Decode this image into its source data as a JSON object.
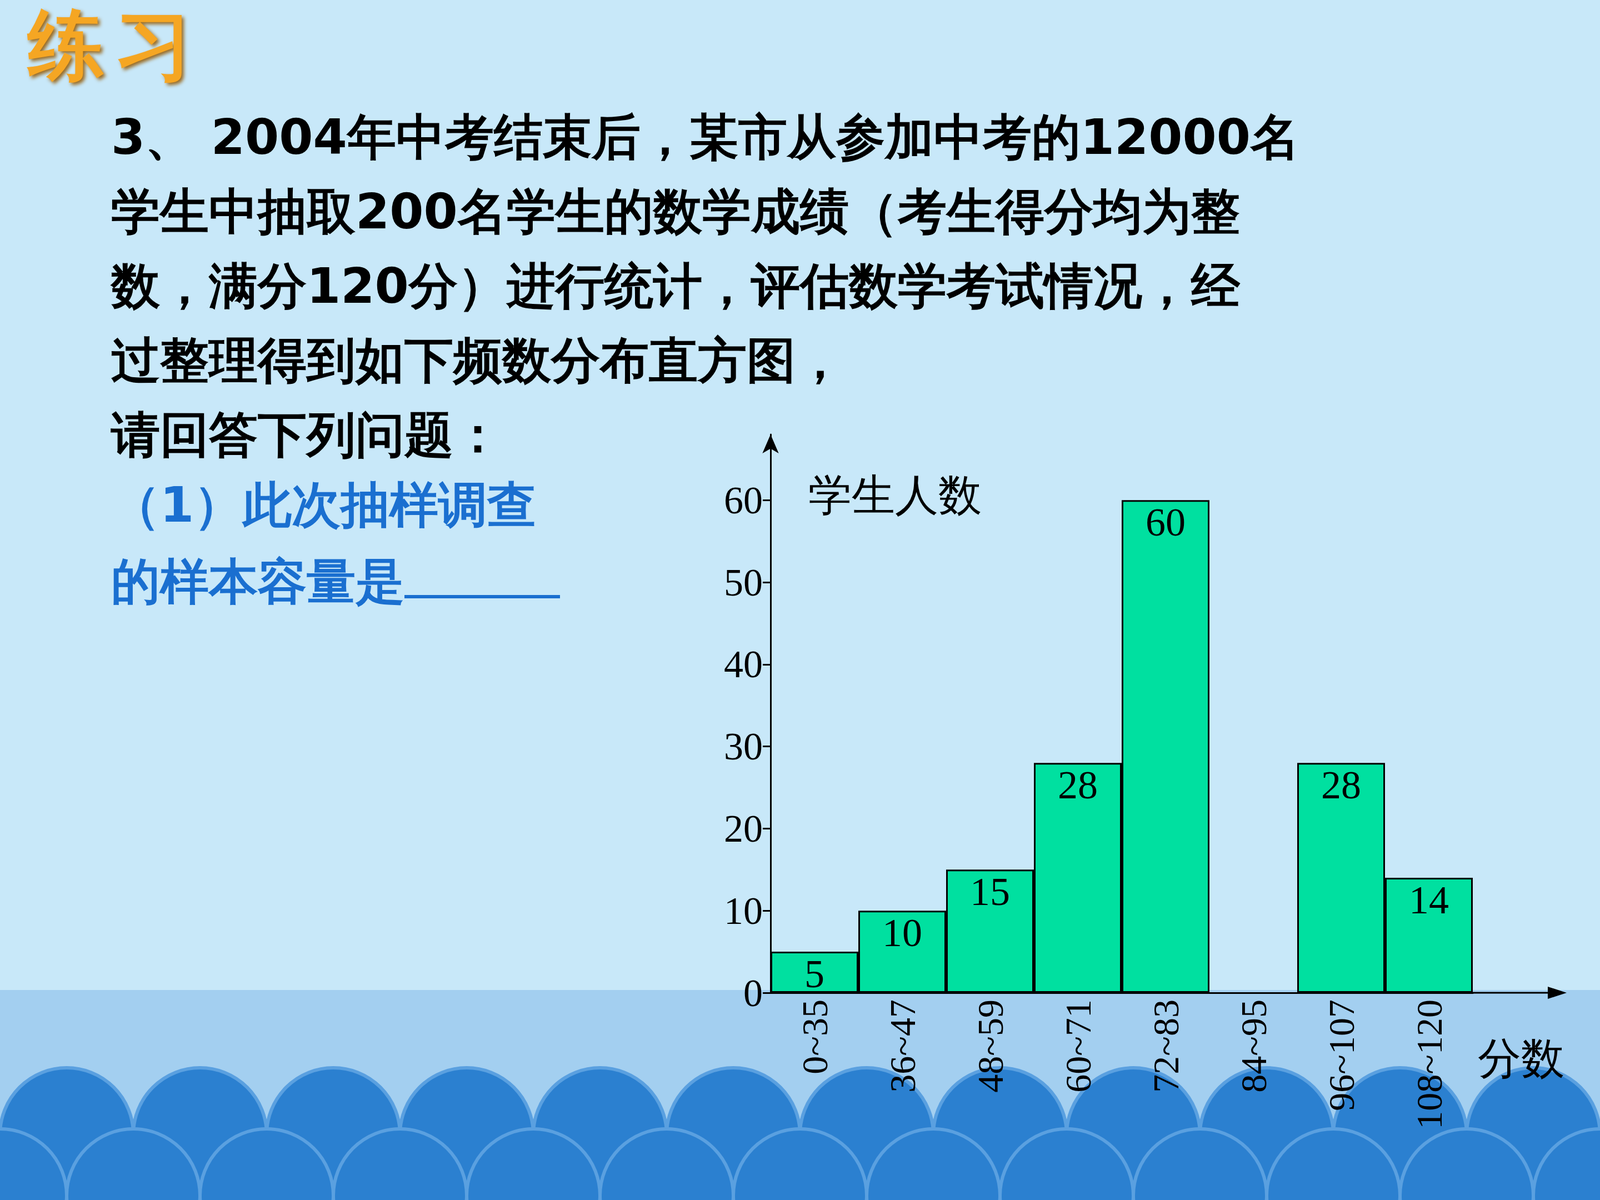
{
  "slide": {
    "heading": "练习",
    "problem": [
      "3、 2004年中考结束后，某市从参加中考的12000名",
      "学生中抽取200名学生的数学成绩（考生得分均为整",
      "数，满分120分）进行统计，评估数学考试情况，经",
      "过整理得到如下频数分布直方图，",
      "请回答下列问题："
    ],
    "question": [
      "（1）此次抽样调查",
      "的样本容量是"
    ]
  },
  "chart_data": {
    "type": "bar",
    "categories": [
      "0~35",
      "36~47",
      "48~59",
      "60~71",
      "72~83",
      "84~95",
      "96~107",
      "108~120"
    ],
    "values": [
      5,
      10,
      15,
      28,
      60,
      null,
      28,
      14
    ],
    "color": "#00e0a0",
    "ylim": [
      0,
      68
    ],
    "yticks": [
      0,
      10,
      20,
      30,
      40,
      50,
      60
    ],
    "y_label": "学生人数",
    "x_label": "分数",
    "data_labels": true,
    "grid": false
  }
}
